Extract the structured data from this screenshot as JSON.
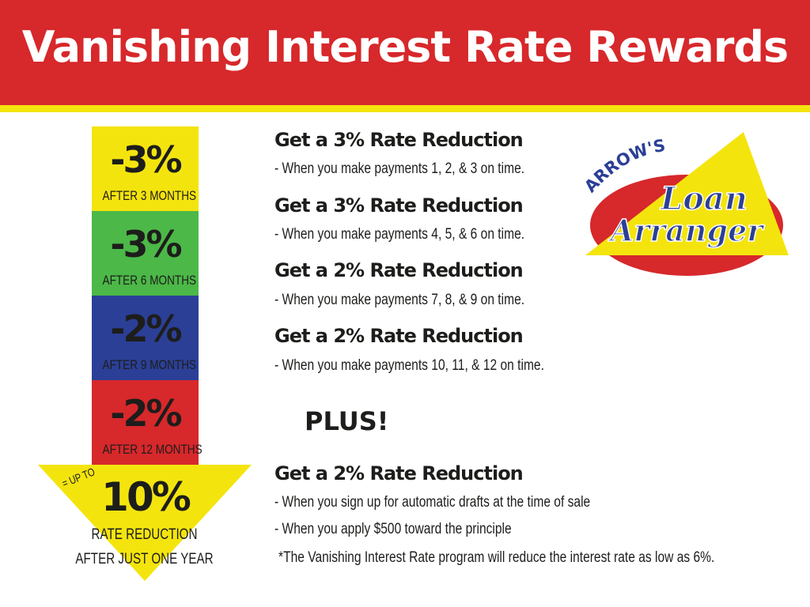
{
  "title": "Vanishing Interest Rate Rewards",
  "colors": {
    "red": "#d7282b",
    "yellow": "#f4e40e",
    "green": "#4cb848",
    "blue": "#2b3f96",
    "logo_blue": "#2b3f96"
  },
  "steps": [
    {
      "pct": "-3%",
      "label": "AFTER 3 MONTHS"
    },
    {
      "pct": "-3%",
      "label": "AFTER 6 MONTHS"
    },
    {
      "pct": "-2%",
      "label": "AFTER 9 MONTHS"
    },
    {
      "pct": "-2%",
      "label": "AFTER 12 MONTHS"
    }
  ],
  "total": {
    "prefix": "= UP TO",
    "pct": "10%",
    "line1": "RATE REDUCTION",
    "line2": "AFTER JUST ONE YEAR"
  },
  "rewards": [
    {
      "heading": "Get a 3% Rate Reduction",
      "lines": [
        "- When you make payments 1, 2, & 3 on time."
      ]
    },
    {
      "heading": "Get a 3% Rate Reduction",
      "lines": [
        "- When you make payments 4, 5, & 6 on time."
      ]
    },
    {
      "heading": "Get a 2% Rate Reduction",
      "lines": [
        "- When you make payments 7, 8, & 9 on time."
      ]
    },
    {
      "heading": "Get a 2% Rate Reduction",
      "lines": [
        "- When you make payments 10, 11, & 12 on time."
      ]
    }
  ],
  "plus": "PLUS!",
  "bonus": {
    "heading": "Get a 2% Rate Reduction",
    "lines": [
      "- When you sign up for automatic drafts at the time of sale",
      "- When you apply $500 toward the principle"
    ]
  },
  "footnote": "*The Vanishing Interest Rate program will reduce the interest rate as low as 6%.",
  "logo": {
    "top": "ARROW'S",
    "line1": "Loan",
    "line2": "Arranger"
  }
}
